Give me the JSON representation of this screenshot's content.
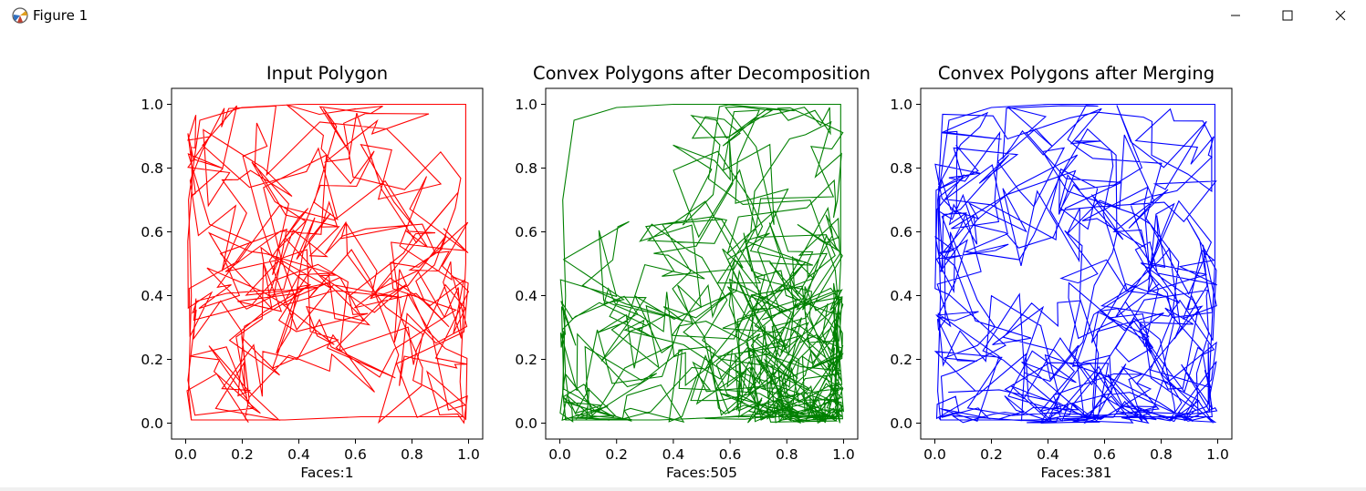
{
  "window": {
    "title": "Figure 1",
    "icon": "matplotlib-figure-icon",
    "controls": [
      "minimize-icon",
      "maximize-icon",
      "close-icon"
    ]
  },
  "chart_data": [
    {
      "type": "line",
      "title": "Input Polygon",
      "xlabel": "Faces:1",
      "ylabel": "",
      "color": "#ff0000",
      "xlim": [
        -0.05,
        1.05
      ],
      "ylim": [
        -0.05,
        1.05
      ],
      "xticks": [
        "0.0",
        "0.2",
        "0.4",
        "0.6",
        "0.8",
        "1.0"
      ],
      "yticks": [
        "0.0",
        "0.2",
        "0.4",
        "0.6",
        "0.8",
        "1.0"
      ],
      "grid": false,
      "seed": 11,
      "edge_count": 360,
      "points": [
        [
          0.02,
          0.01
        ],
        [
          0.35,
          0.01
        ],
        [
          0.62,
          0.02
        ],
        [
          0.98,
          0.02
        ],
        [
          0.97,
          0.13
        ],
        [
          0.99,
          0.5
        ],
        [
          0.99,
          1.0
        ],
        [
          0.7,
          1.0
        ],
        [
          0.4,
          1.0
        ],
        [
          0.2,
          0.99
        ],
        [
          0.05,
          0.95
        ],
        [
          0.01,
          0.7
        ],
        [
          0.02,
          0.4
        ],
        [
          0.01,
          0.1
        ]
      ]
    },
    {
      "type": "line",
      "title": "Convex Polygons after Decomposition",
      "xlabel": "Faces:505",
      "ylabel": "",
      "color": "#008000",
      "xlim": [
        -0.05,
        1.05
      ],
      "ylim": [
        -0.05,
        1.05
      ],
      "xticks": [
        "0.0",
        "0.2",
        "0.4",
        "0.6",
        "0.8",
        "1.0"
      ],
      "yticks": [
        "0.0",
        "0.2",
        "0.4",
        "0.6",
        "0.8",
        "1.0"
      ],
      "grid": false,
      "seed": 23,
      "edge_count": 620,
      "points": [
        [
          0.02,
          0.01
        ],
        [
          0.35,
          0.01
        ],
        [
          0.62,
          0.02
        ],
        [
          0.98,
          0.02
        ],
        [
          0.97,
          0.13
        ],
        [
          0.99,
          0.5
        ],
        [
          0.99,
          1.0
        ],
        [
          0.7,
          1.0
        ],
        [
          0.4,
          1.0
        ],
        [
          0.2,
          0.99
        ],
        [
          0.05,
          0.95
        ],
        [
          0.01,
          0.7
        ],
        [
          0.02,
          0.4
        ],
        [
          0.01,
          0.1
        ]
      ]
    },
    {
      "type": "line",
      "title": "Convex Polygons after Merging",
      "xlabel": "Faces:381",
      "ylabel": "",
      "color": "#0000ff",
      "xlim": [
        -0.05,
        1.05
      ],
      "ylim": [
        -0.05,
        1.05
      ],
      "xticks": [
        "0.0",
        "0.2",
        "0.4",
        "0.6",
        "0.8",
        "1.0"
      ],
      "yticks": [
        "0.0",
        "0.2",
        "0.4",
        "0.6",
        "0.8",
        "1.0"
      ],
      "grid": false,
      "seed": 37,
      "edge_count": 540,
      "points": [
        [
          0.02,
          0.01
        ],
        [
          0.35,
          0.01
        ],
        [
          0.62,
          0.02
        ],
        [
          0.98,
          0.02
        ],
        [
          0.97,
          0.13
        ],
        [
          0.99,
          0.5
        ],
        [
          0.99,
          1.0
        ],
        [
          0.7,
          1.0
        ],
        [
          0.4,
          1.0
        ],
        [
          0.2,
          0.99
        ],
        [
          0.05,
          0.95
        ],
        [
          0.01,
          0.7
        ],
        [
          0.02,
          0.4
        ],
        [
          0.01,
          0.1
        ]
      ]
    }
  ]
}
